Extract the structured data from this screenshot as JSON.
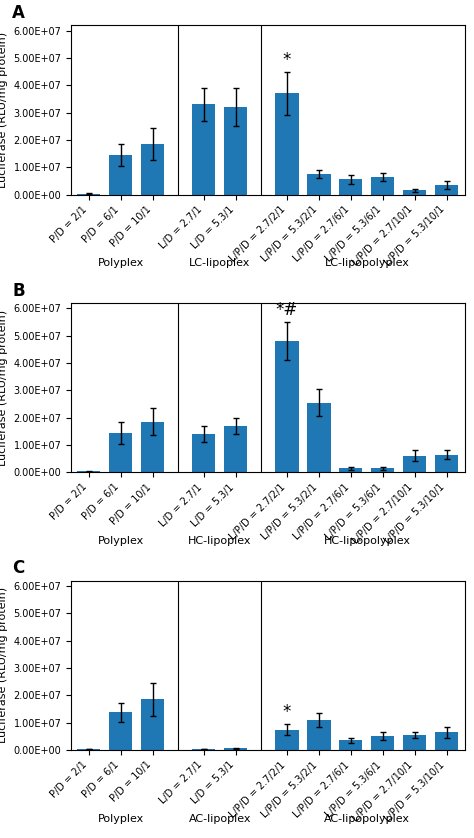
{
  "chart_data": [
    {
      "type": "bar",
      "title": "A",
      "ylabel": "Luciferase (RLU/mg protein)",
      "groups": [
        {
          "label": "Polyplex",
          "size": 3
        },
        {
          "label": "LC-lipoplex",
          "size": 2
        },
        {
          "label": "LC-lipopolyplex",
          "size": 6
        }
      ],
      "categories": [
        "P/D = 2/1",
        "P/D = 6/1",
        "P/D = 10/1",
        "L/D = 2.7/1",
        "L/D = 5.3/1",
        "L/P/D = 2.7/2/1",
        "L/P/D = 5.3/2/1",
        "L/P/D = 2.7/6/1",
        "L/P/D = 5.3/6/1",
        "L/P/D = 2.7/10/1",
        "L/P/D = 5.3/10/1"
      ],
      "values": [
        300000,
        14500000,
        18500000,
        33000000,
        32000000,
        37000000,
        7500000,
        5500000,
        6500000,
        1500000,
        3500000
      ],
      "errors": [
        100000,
        4000000,
        6000000,
        6000000,
        7000000,
        8000000,
        1500000,
        1500000,
        1500000,
        500000,
        1500000
      ],
      "annotations": [
        {
          "index": 5,
          "text": "*"
        }
      ],
      "ylim": [
        0,
        62000000
      ],
      "yticks": [
        {
          "value": 0,
          "label": "0.00E+00"
        },
        {
          "value": 10000000,
          "label": "1.00E+07"
        },
        {
          "value": 20000000,
          "label": "2.00E+07"
        },
        {
          "value": 30000000,
          "label": "3.00E+07"
        },
        {
          "value": 40000000,
          "label": "4.00E+07"
        },
        {
          "value": 50000000,
          "label": "5.00E+07"
        },
        {
          "value": 60000000,
          "label": "6.00E+07"
        }
      ]
    },
    {
      "type": "bar",
      "title": "B",
      "ylabel": "Luciferase (RLU/mg protein)",
      "groups": [
        {
          "label": "Polyplex",
          "size": 3
        },
        {
          "label": "HC-lipoplex",
          "size": 2
        },
        {
          "label": "HC-lipopolyplex",
          "size": 6
        }
      ],
      "categories": [
        "P/D = 2/1",
        "P/D = 6/1",
        "P/D = 10/1",
        "L/D = 2.7/1",
        "L/D = 5.3/1",
        "L/P/D = 2.7/2/1",
        "L/P/D = 5.3/2/1",
        "L/P/D = 2.7/6/1",
        "L/P/D = 5.3/6/1",
        "L/P/D = 2.7/10/1",
        "L/P/D = 5.3/10/1"
      ],
      "values": [
        300000,
        14500000,
        18500000,
        14000000,
        17000000,
        48000000,
        25500000,
        1500000,
        1500000,
        6000000,
        6500000
      ],
      "errors": [
        100000,
        4000000,
        5000000,
        3000000,
        3000000,
        7000000,
        5000000,
        500000,
        500000,
        2000000,
        1500000
      ],
      "annotations": [
        {
          "index": 5,
          "text": "*#"
        }
      ],
      "ylim": [
        0,
        62000000
      ],
      "yticks": [
        {
          "value": 0,
          "label": "0.00E+00"
        },
        {
          "value": 10000000,
          "label": "1.00E+07"
        },
        {
          "value": 20000000,
          "label": "2.00E+07"
        },
        {
          "value": 30000000,
          "label": "3.00E+07"
        },
        {
          "value": 40000000,
          "label": "4.00E+07"
        },
        {
          "value": 50000000,
          "label": "5.00E+07"
        },
        {
          "value": 60000000,
          "label": "6.00E+07"
        }
      ]
    },
    {
      "type": "bar",
      "title": "C",
      "ylabel": "Luciferase (RLU/mg protein)",
      "groups": [
        {
          "label": "Polyplex",
          "size": 3
        },
        {
          "label": "AC-lipoplex",
          "size": 2
        },
        {
          "label": "AC-lipopolyplex",
          "size": 6
        }
      ],
      "categories": [
        "P/D = 2/1",
        "P/D = 6/1",
        "P/D = 10/1",
        "L/D = 2.7/1",
        "L/D = 5.3/1",
        "L/P/D = 2.7/2/1",
        "L/P/D = 5.3/2/1",
        "L/P/D = 2.7/6/1",
        "L/P/D = 5.3/6/1",
        "L/P/D = 2.7/10/1",
        "L/P/D = 5.3/10/1"
      ],
      "values": [
        300000,
        13800000,
        18500000,
        300000,
        700000,
        7500000,
        11000000,
        3500000,
        5000000,
        5500000,
        6500000
      ],
      "errors": [
        50000,
        3500000,
        6000000,
        50000,
        200000,
        2000000,
        2500000,
        1000000,
        1500000,
        1000000,
        2000000
      ],
      "annotations": [
        {
          "index": 5,
          "text": "*"
        }
      ],
      "ylim": [
        0,
        62000000
      ],
      "yticks": [
        {
          "value": 0,
          "label": "0.00E+00"
        },
        {
          "value": 10000000,
          "label": "1.00E+07"
        },
        {
          "value": 20000000,
          "label": "2.00E+07"
        },
        {
          "value": 30000000,
          "label": "3.00E+07"
        },
        {
          "value": 40000000,
          "label": "4.00E+07"
        },
        {
          "value": 50000000,
          "label": "5.00E+07"
        },
        {
          "value": 60000000,
          "label": "6.00E+07"
        }
      ]
    }
  ]
}
